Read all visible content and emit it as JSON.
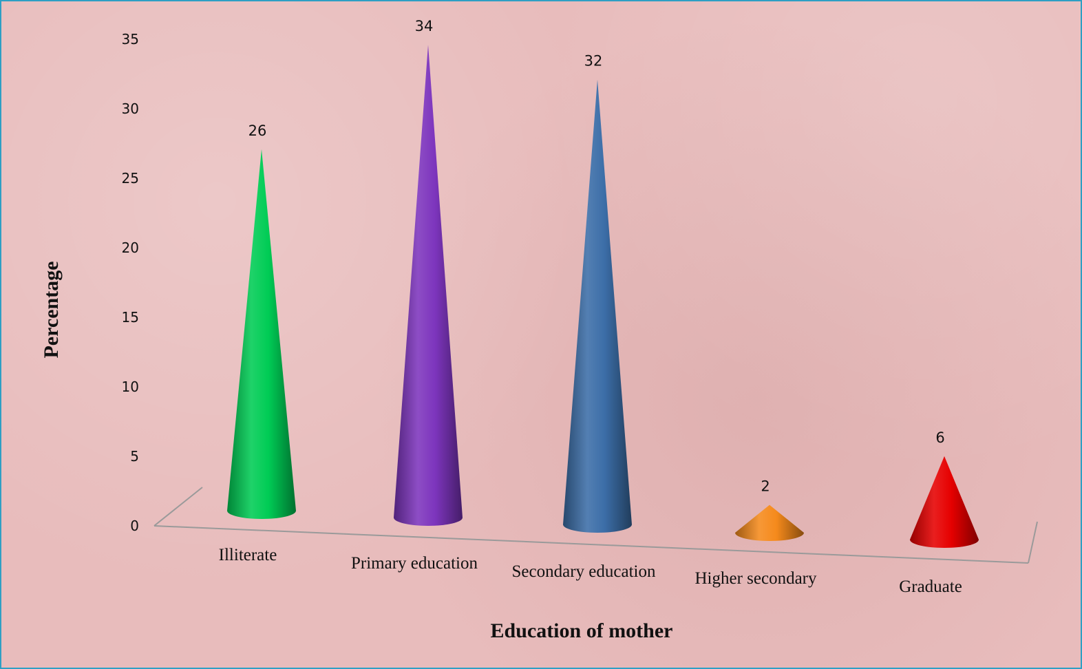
{
  "chart_data": {
    "type": "bar",
    "style": "3d-cone",
    "title": "",
    "xlabel": "Education of mother",
    "ylabel": "Percentage",
    "ylim": [
      0,
      35
    ],
    "yticks": [
      "0",
      "5",
      "10",
      "15",
      "20",
      "25",
      "30",
      "35"
    ],
    "categories": [
      "Illiterate",
      "Primary education",
      "Secondary education",
      "Higher secondary",
      "Graduate"
    ],
    "values": [
      26,
      34,
      32,
      2,
      6
    ],
    "colors": [
      "#00cc55",
      "#7d35bd",
      "#3c6ea8",
      "#f58a1c",
      "#e60000"
    ],
    "grid": false,
    "legend": "none"
  }
}
